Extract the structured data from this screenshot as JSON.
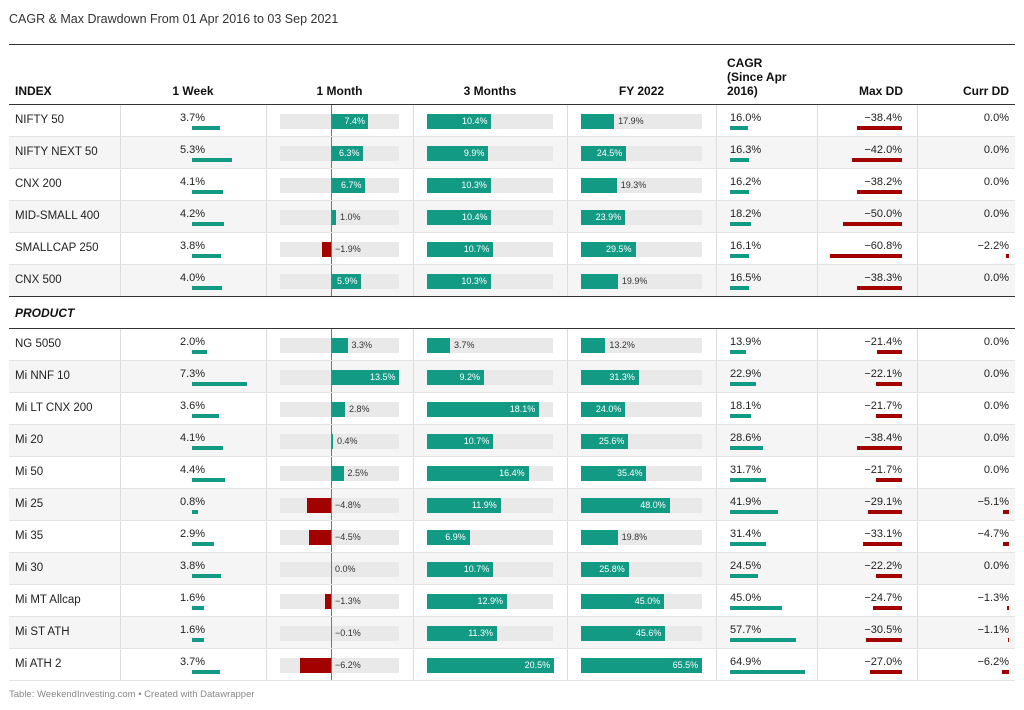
{
  "title": "CAGR & Max Drawdown From 01 Apr 2016 to 03 Sep 2021",
  "footer": "Table: WeekendInvesting.com • Created with Datawrapper",
  "colors": {
    "positive": "#139a84",
    "negative": "#a30000",
    "track": "#e9e9e9"
  },
  "chart_data": {
    "type": "table",
    "columns": [
      "INDEX",
      "1 Week",
      "1 Month",
      "3 Months",
      "FY 2022",
      "CAGR (Since Apr 2016)",
      "Max DD",
      "Curr DD"
    ],
    "groups": [
      {
        "label": "",
        "rows": [
          {
            "name": "NIFTY 50",
            "w1": 3.7,
            "m1": 7.4,
            "m3": 10.4,
            "fy": 17.9,
            "cagr": 16.0,
            "maxdd": -38.4,
            "currdd": 0.0
          },
          {
            "name": "NIFTY NEXT 50",
            "w1": 5.3,
            "m1": 6.3,
            "m3": 9.9,
            "fy": 24.5,
            "cagr": 16.3,
            "maxdd": -42.0,
            "currdd": 0.0
          },
          {
            "name": "CNX 200",
            "w1": 4.1,
            "m1": 6.7,
            "m3": 10.3,
            "fy": 19.3,
            "cagr": 16.2,
            "maxdd": -38.2,
            "currdd": 0.0
          },
          {
            "name": "MID-SMALL 400",
            "w1": 4.2,
            "m1": 1.0,
            "m3": 10.4,
            "fy": 23.9,
            "cagr": 18.2,
            "maxdd": -50.0,
            "currdd": 0.0
          },
          {
            "name": "SMALLCAP 250",
            "w1": 3.8,
            "m1": -1.9,
            "m3": 10.7,
            "fy": 29.5,
            "cagr": 16.1,
            "maxdd": -60.8,
            "currdd": -2.2
          },
          {
            "name": "CNX 500",
            "w1": 4.0,
            "m1": 5.9,
            "m3": 10.3,
            "fy": 19.9,
            "cagr": 16.5,
            "maxdd": -38.3,
            "currdd": 0.0
          }
        ]
      },
      {
        "label": "PRODUCT",
        "rows": [
          {
            "name": "NG 5050",
            "w1": 2.0,
            "m1": 3.3,
            "m3": 3.7,
            "fy": 13.2,
            "cagr": 13.9,
            "maxdd": -21.4,
            "currdd": 0.0
          },
          {
            "name": "Mi NNF 10",
            "w1": 7.3,
            "m1": 13.5,
            "m3": 9.2,
            "fy": 31.3,
            "cagr": 22.9,
            "maxdd": -22.1,
            "currdd": 0.0
          },
          {
            "name": "Mi LT CNX 200",
            "w1": 3.6,
            "m1": 2.8,
            "m3": 18.1,
            "fy": 24.0,
            "cagr": 18.1,
            "maxdd": -21.7,
            "currdd": 0.0
          },
          {
            "name": "Mi 20",
            "w1": 4.1,
            "m1": 0.4,
            "m3": 10.7,
            "fy": 25.6,
            "cagr": 28.6,
            "maxdd": -38.4,
            "currdd": 0.0
          },
          {
            "name": "Mi 50",
            "w1": 4.4,
            "m1": 2.5,
            "m3": 16.4,
            "fy": 35.4,
            "cagr": 31.7,
            "maxdd": -21.7,
            "currdd": 0.0
          },
          {
            "name": "Mi 25",
            "w1": 0.8,
            "m1": -4.8,
            "m3": 11.9,
            "fy": 48.0,
            "cagr": 41.9,
            "maxdd": -29.1,
            "currdd": -5.1
          },
          {
            "name": "Mi 35",
            "w1": 2.9,
            "m1": -4.5,
            "m3": 6.9,
            "fy": 19.8,
            "cagr": 31.4,
            "maxdd": -33.1,
            "currdd": -4.7
          },
          {
            "name": "Mi 30",
            "w1": 3.8,
            "m1": 0.0,
            "m3": 10.7,
            "fy": 25.8,
            "cagr": 24.5,
            "maxdd": -22.2,
            "currdd": 0.0
          },
          {
            "name": "Mi MT Allcap",
            "w1": 1.6,
            "m1": -1.3,
            "m3": 12.9,
            "fy": 45.0,
            "cagr": 45.0,
            "maxdd": -24.7,
            "currdd": -1.3
          },
          {
            "name": "Mi ST ATH",
            "w1": 1.6,
            "m1": -0.1,
            "m3": 11.3,
            "fy": 45.6,
            "cagr": 57.7,
            "maxdd": -30.5,
            "currdd": -1.1
          },
          {
            "name": "Mi ATH 2",
            "w1": 3.7,
            "m1": -6.2,
            "m3": 20.5,
            "fy": 65.5,
            "cagr": 64.9,
            "maxdd": -27.0,
            "currdd": -6.2
          }
        ]
      }
    ]
  }
}
